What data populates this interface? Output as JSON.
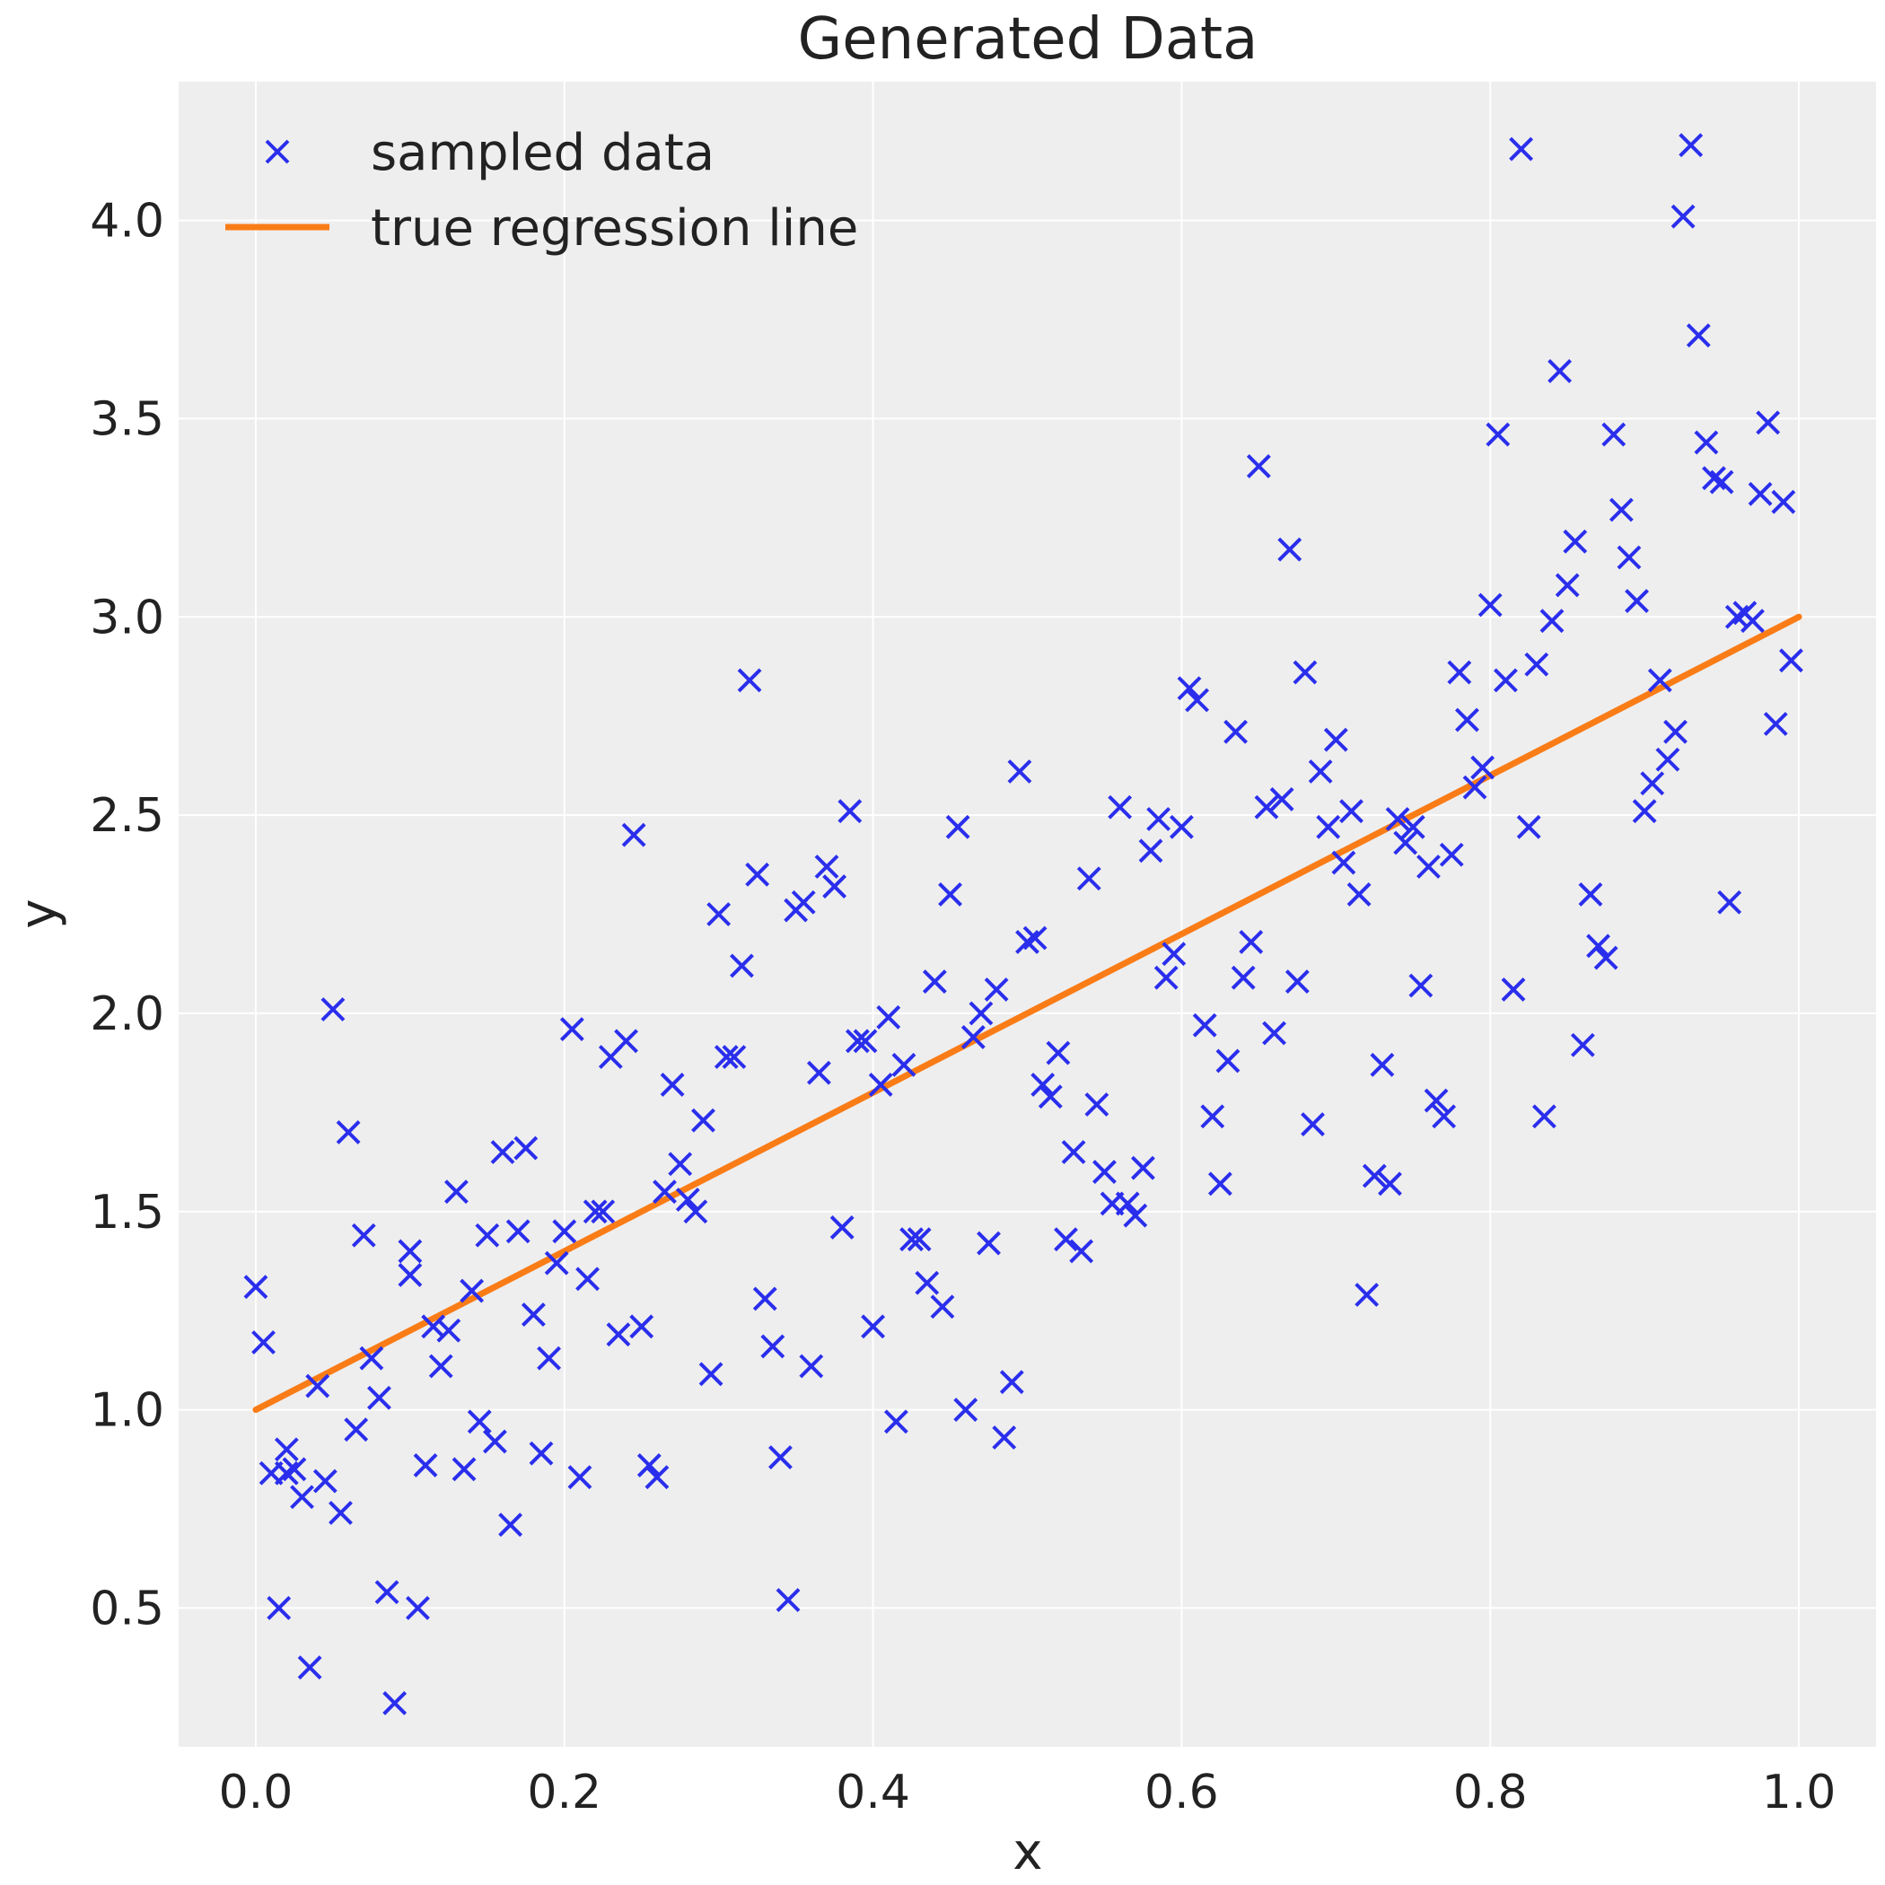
{
  "chart_data": {
    "type": "scatter",
    "title": "Generated Data",
    "xlabel": "x",
    "ylabel": "y",
    "xlim": [
      -0.05,
      1.05
    ],
    "ylim": [
      0.15,
      4.35
    ],
    "xticks": [
      "0.0",
      "0.2",
      "0.4",
      "0.6",
      "0.8",
      "1.0"
    ],
    "yticks": [
      "0.5",
      "1.0",
      "1.5",
      "2.0",
      "2.5",
      "3.0",
      "3.5",
      "4.0"
    ],
    "grid": true,
    "legend_position": "top-left",
    "colors": {
      "scatter": "#2a2eec",
      "line": "#fa7c17",
      "background": "#eeeeee",
      "grid": "#ffffff"
    },
    "series": [
      {
        "name": "sampled data",
        "kind": "scatter",
        "marker": "x",
        "points": [
          [
            0.0,
            1.31
          ],
          [
            0.005,
            1.17
          ],
          [
            0.01,
            0.84
          ],
          [
            0.015,
            0.5
          ],
          [
            0.02,
            0.9
          ],
          [
            0.02,
            0.84
          ],
          [
            0.025,
            0.85
          ],
          [
            0.03,
            0.78
          ],
          [
            0.035,
            0.35
          ],
          [
            0.04,
            1.06
          ],
          [
            0.045,
            0.82
          ],
          [
            0.05,
            2.01
          ],
          [
            0.055,
            0.74
          ],
          [
            0.06,
            1.7
          ],
          [
            0.065,
            0.95
          ],
          [
            0.07,
            1.44
          ],
          [
            0.075,
            1.13
          ],
          [
            0.08,
            1.03
          ],
          [
            0.085,
            0.54
          ],
          [
            0.09,
            0.26
          ],
          [
            0.1,
            1.34
          ],
          [
            0.1,
            1.4
          ],
          [
            0.105,
            0.5
          ],
          [
            0.11,
            0.86
          ],
          [
            0.115,
            1.21
          ],
          [
            0.12,
            1.11
          ],
          [
            0.125,
            1.2
          ],
          [
            0.13,
            1.55
          ],
          [
            0.135,
            0.85
          ],
          [
            0.14,
            1.3
          ],
          [
            0.145,
            0.97
          ],
          [
            0.15,
            1.44
          ],
          [
            0.155,
            0.92
          ],
          [
            0.16,
            1.65
          ],
          [
            0.165,
            0.71
          ],
          [
            0.17,
            1.45
          ],
          [
            0.175,
            1.66
          ],
          [
            0.18,
            1.24
          ],
          [
            0.185,
            0.89
          ],
          [
            0.19,
            1.13
          ],
          [
            0.195,
            1.37
          ],
          [
            0.2,
            1.45
          ],
          [
            0.205,
            1.96
          ],
          [
            0.21,
            0.83
          ],
          [
            0.215,
            1.33
          ],
          [
            0.22,
            1.5
          ],
          [
            0.225,
            1.5
          ],
          [
            0.23,
            1.89
          ],
          [
            0.235,
            1.19
          ],
          [
            0.24,
            1.93
          ],
          [
            0.245,
            2.45
          ],
          [
            0.25,
            1.21
          ],
          [
            0.255,
            0.86
          ],
          [
            0.26,
            0.83
          ],
          [
            0.265,
            1.55
          ],
          [
            0.27,
            1.82
          ],
          [
            0.275,
            1.62
          ],
          [
            0.28,
            1.53
          ],
          [
            0.285,
            1.5
          ],
          [
            0.29,
            1.73
          ],
          [
            0.295,
            1.09
          ],
          [
            0.3,
            2.25
          ],
          [
            0.305,
            1.89
          ],
          [
            0.31,
            1.89
          ],
          [
            0.315,
            2.12
          ],
          [
            0.32,
            2.84
          ],
          [
            0.325,
            2.35
          ],
          [
            0.33,
            1.28
          ],
          [
            0.335,
            1.16
          ],
          [
            0.34,
            0.88
          ],
          [
            0.345,
            0.52
          ],
          [
            0.35,
            2.26
          ],
          [
            0.355,
            2.28
          ],
          [
            0.36,
            1.11
          ],
          [
            0.365,
            1.85
          ],
          [
            0.37,
            2.37
          ],
          [
            0.375,
            2.32
          ],
          [
            0.38,
            1.46
          ],
          [
            0.385,
            2.51
          ],
          [
            0.39,
            1.93
          ],
          [
            0.395,
            1.93
          ],
          [
            0.4,
            1.21
          ],
          [
            0.405,
            1.82
          ],
          [
            0.41,
            1.99
          ],
          [
            0.415,
            0.97
          ],
          [
            0.42,
            1.87
          ],
          [
            0.425,
            1.43
          ],
          [
            0.43,
            1.43
          ],
          [
            0.435,
            1.32
          ],
          [
            0.44,
            2.08
          ],
          [
            0.445,
            1.26
          ],
          [
            0.45,
            2.3
          ],
          [
            0.455,
            2.47
          ],
          [
            0.46,
            1.0
          ],
          [
            0.465,
            1.94
          ],
          [
            0.47,
            2.0
          ],
          [
            0.475,
            1.42
          ],
          [
            0.48,
            2.06
          ],
          [
            0.485,
            0.93
          ],
          [
            0.49,
            1.07
          ],
          [
            0.495,
            2.61
          ],
          [
            0.5,
            2.18
          ],
          [
            0.505,
            2.19
          ],
          [
            0.51,
            1.82
          ],
          [
            0.515,
            1.79
          ],
          [
            0.52,
            1.9
          ],
          [
            0.525,
            1.43
          ],
          [
            0.53,
            1.65
          ],
          [
            0.535,
            1.4
          ],
          [
            0.54,
            2.34
          ],
          [
            0.545,
            1.77
          ],
          [
            0.55,
            1.6
          ],
          [
            0.555,
            1.52
          ],
          [
            0.56,
            2.52
          ],
          [
            0.565,
            1.52
          ],
          [
            0.57,
            1.49
          ],
          [
            0.575,
            1.61
          ],
          [
            0.58,
            2.41
          ],
          [
            0.585,
            2.49
          ],
          [
            0.59,
            2.09
          ],
          [
            0.595,
            2.15
          ],
          [
            0.6,
            2.47
          ],
          [
            0.605,
            2.82
          ],
          [
            0.61,
            2.79
          ],
          [
            0.615,
            1.97
          ],
          [
            0.62,
            1.74
          ],
          [
            0.625,
            1.57
          ],
          [
            0.63,
            1.88
          ],
          [
            0.635,
            2.71
          ],
          [
            0.64,
            2.09
          ],
          [
            0.645,
            2.18
          ],
          [
            0.65,
            3.38
          ],
          [
            0.655,
            2.52
          ],
          [
            0.66,
            1.95
          ],
          [
            0.665,
            2.54
          ],
          [
            0.67,
            3.17
          ],
          [
            0.675,
            2.08
          ],
          [
            0.68,
            2.86
          ],
          [
            0.685,
            1.72
          ],
          [
            0.69,
            2.61
          ],
          [
            0.695,
            2.47
          ],
          [
            0.7,
            2.69
          ],
          [
            0.705,
            2.38
          ],
          [
            0.71,
            2.51
          ],
          [
            0.715,
            2.3
          ],
          [
            0.72,
            1.29
          ],
          [
            0.725,
            1.59
          ],
          [
            0.73,
            1.87
          ],
          [
            0.735,
            1.57
          ],
          [
            0.74,
            2.49
          ],
          [
            0.745,
            2.43
          ],
          [
            0.75,
            2.47
          ],
          [
            0.755,
            2.07
          ],
          [
            0.76,
            2.37
          ],
          [
            0.765,
            1.78
          ],
          [
            0.77,
            1.74
          ],
          [
            0.775,
            2.4
          ],
          [
            0.78,
            2.86
          ],
          [
            0.785,
            2.74
          ],
          [
            0.79,
            2.57
          ],
          [
            0.795,
            2.62
          ],
          [
            0.8,
            3.03
          ],
          [
            0.805,
            3.46
          ],
          [
            0.81,
            2.84
          ],
          [
            0.815,
            2.06
          ],
          [
            0.82,
            4.18
          ],
          [
            0.825,
            2.47
          ],
          [
            0.83,
            2.88
          ],
          [
            0.835,
            1.74
          ],
          [
            0.84,
            2.99
          ],
          [
            0.845,
            3.62
          ],
          [
            0.85,
            3.08
          ],
          [
            0.855,
            3.19
          ],
          [
            0.86,
            1.92
          ],
          [
            0.865,
            2.3
          ],
          [
            0.87,
            2.17
          ],
          [
            0.875,
            2.14
          ],
          [
            0.88,
            3.46
          ],
          [
            0.885,
            3.27
          ],
          [
            0.89,
            3.15
          ],
          [
            0.895,
            3.04
          ],
          [
            0.9,
            2.51
          ],
          [
            0.905,
            2.58
          ],
          [
            0.91,
            2.84
          ],
          [
            0.915,
            2.64
          ],
          [
            0.92,
            2.71
          ],
          [
            0.925,
            4.01
          ],
          [
            0.93,
            4.19
          ],
          [
            0.935,
            3.71
          ],
          [
            0.94,
            3.44
          ],
          [
            0.945,
            3.35
          ],
          [
            0.95,
            3.34
          ],
          [
            0.955,
            2.28
          ],
          [
            0.96,
            3.0
          ],
          [
            0.965,
            3.01
          ],
          [
            0.97,
            2.99
          ],
          [
            0.975,
            3.31
          ],
          [
            0.98,
            3.49
          ],
          [
            0.985,
            2.73
          ],
          [
            0.99,
            3.29
          ],
          [
            0.995,
            2.89
          ]
        ]
      },
      {
        "name": "true regression line",
        "kind": "line",
        "x": [
          0.0,
          1.0
        ],
        "y": [
          1.0,
          3.0
        ]
      }
    ]
  }
}
